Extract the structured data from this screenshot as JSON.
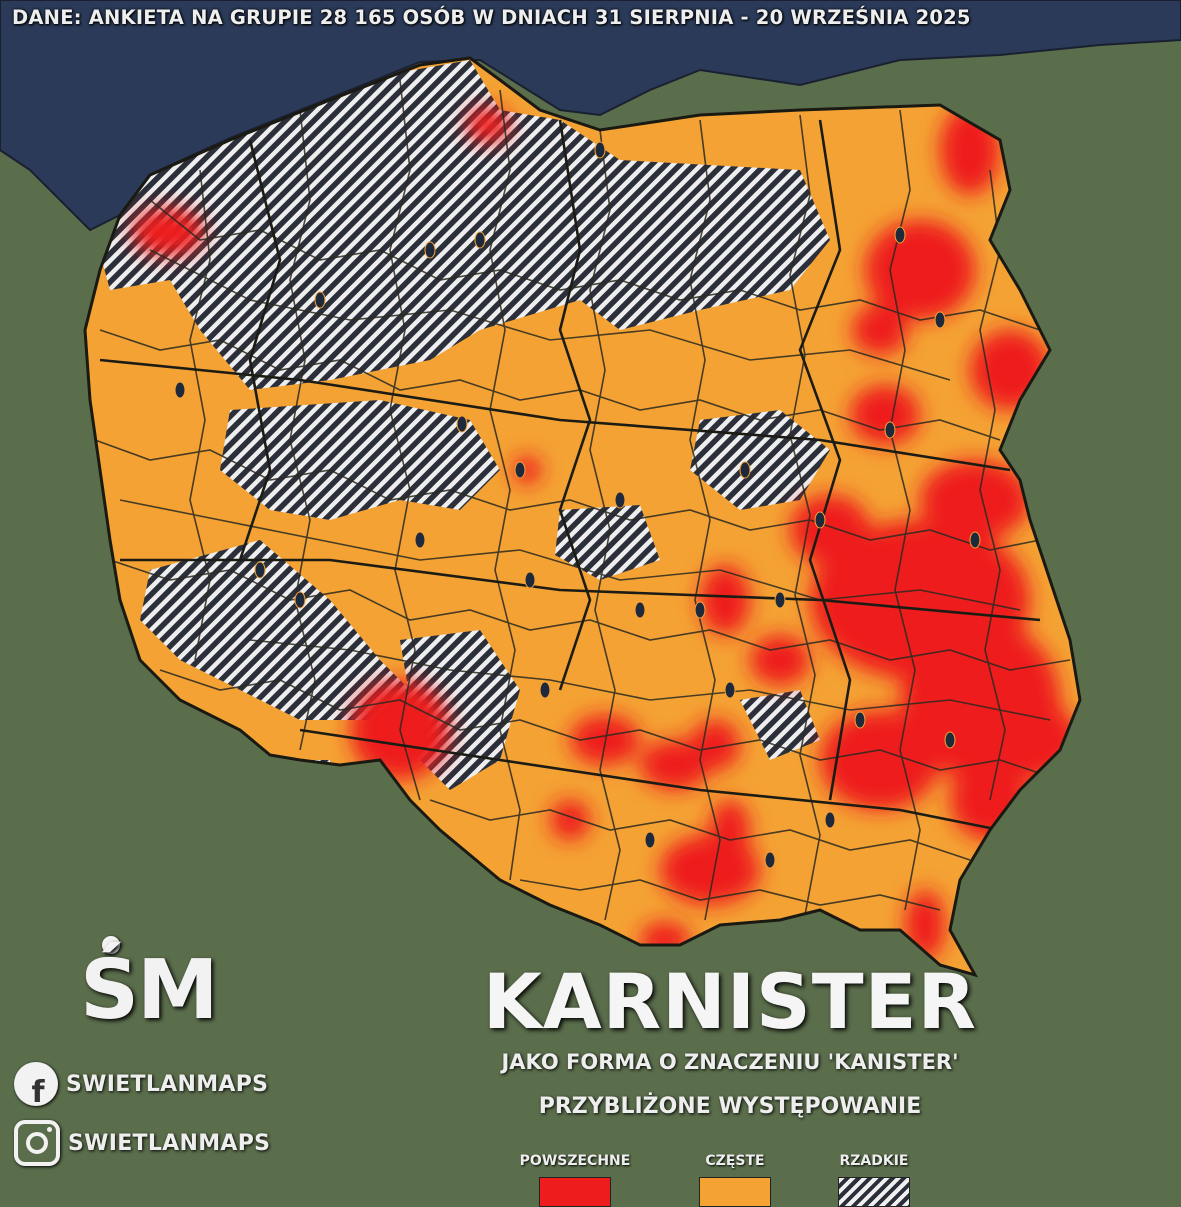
{
  "header": {
    "source_note": "DANE: ANKIETA NA GRUPIE 28 165 OSÓB W DNIACH 31 SIERPNIA - 20 WRZEŚNIA 2025"
  },
  "title": {
    "word": "KARNISTER",
    "subtitle": "JAKO FORMA O ZNACZENIU 'KANISTER'"
  },
  "legend": {
    "title": "PRZYBLIŻONE WYSTĘPOWANIE",
    "items": [
      {
        "label": "POWSZECHNE",
        "color": "#ee1c1c"
      },
      {
        "label": "CZĘSTE",
        "color": "#f4a234"
      },
      {
        "label": "RZADKIE",
        "pattern": "hatched"
      }
    ]
  },
  "branding": {
    "logo": "ŚM",
    "facebook_icon": "facebook-icon",
    "facebook_handle": "SWIETLANMAPS",
    "instagram_icon": "instagram-icon",
    "instagram_handle": "SWIETLANMAPS"
  },
  "colors": {
    "land_background": "#5b6e4c",
    "sea": "#2a3a58",
    "common": "#ee1c1c",
    "frequent": "#f4a234",
    "rare_dark": "#2b2f3a",
    "rare_light": "#f0f0f0",
    "borders": "#2a2a20"
  }
}
